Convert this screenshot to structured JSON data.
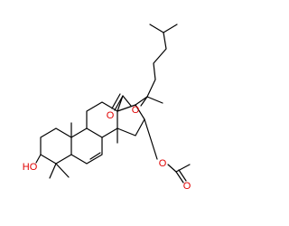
{
  "atoms": [
    {
      "label": "HO"
    },
    {
      "label": "O"
    },
    {
      "label": "O"
    },
    {
      "label": "O"
    },
    {
      "label": "O"
    }
  ]
}
